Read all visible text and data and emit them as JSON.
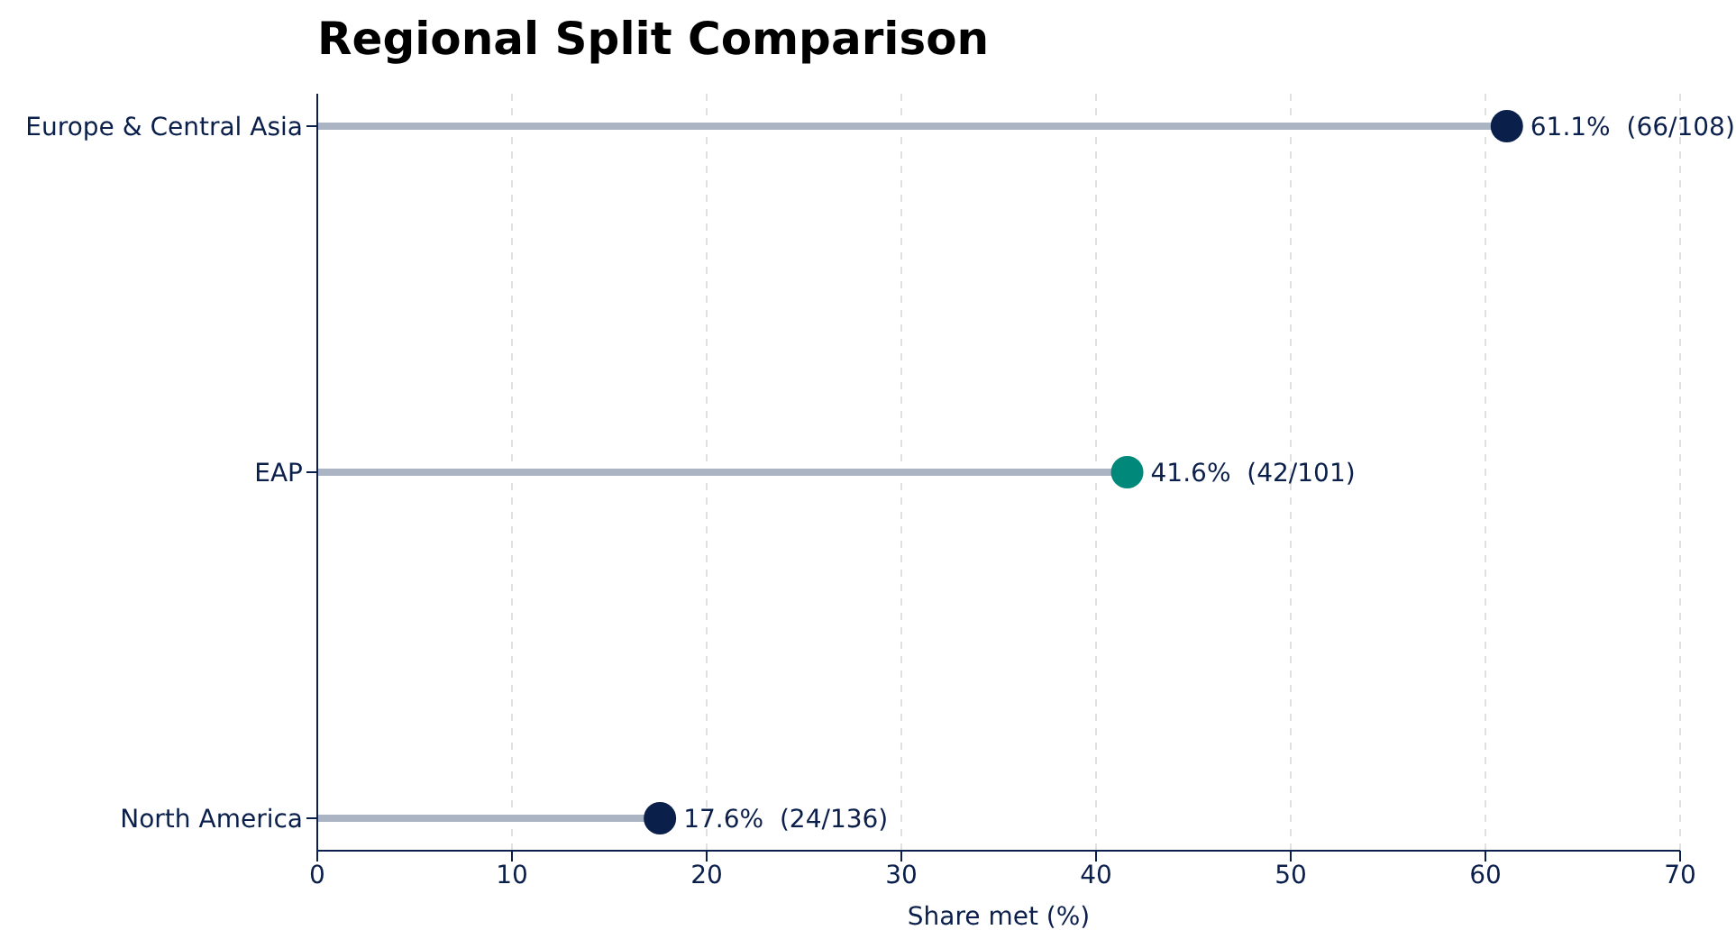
{
  "chart_data": {
    "type": "lollipop",
    "orientation": "horizontal",
    "title": "Regional Split Comparison",
    "xlabel": "Share met (%)",
    "categories": [
      "Europe & Central Asia",
      "EAP",
      "North America"
    ],
    "values": [
      61.1,
      41.6,
      17.6
    ],
    "colors": [
      "#0b1f4b",
      "#00897b",
      "#0b1f4b"
    ],
    "value_labels": [
      "61.1%  (66/108)",
      "41.6%  (42/101)",
      "17.6%  (24/136)"
    ],
    "xlim": [
      0,
      70
    ],
    "xticks": [
      0,
      10,
      20,
      30,
      40,
      50,
      60,
      70
    ],
    "grid": "x",
    "marker": "circle"
  }
}
